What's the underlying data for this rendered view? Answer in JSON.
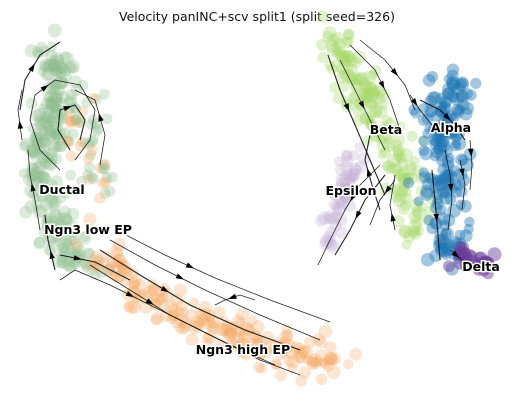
{
  "chart_data": {
    "type": "scatter",
    "title": "Velocity panINC+scv split1 (split seed=326)",
    "xlabel": "",
    "ylabel": "",
    "axes_visible": false,
    "grid": false,
    "legend": "on data",
    "overlay": "velocity streamlines with arrowheads",
    "clusters": [
      {
        "name": "Ductal",
        "color": "#8fbc8f"
      },
      {
        "name": "Ngn3 low EP",
        "color": "#9cc49a"
      },
      {
        "name": "Ngn3 high EP",
        "color": "#f4a460"
      },
      {
        "name": "Beta",
        "color": "#a6d96a"
      },
      {
        "name": "Alpha",
        "color": "#1f77b4"
      },
      {
        "name": "Epsilon",
        "color": "#c5b0d5"
      },
      {
        "name": "Delta",
        "color": "#6a3d9a"
      }
    ]
  }
}
